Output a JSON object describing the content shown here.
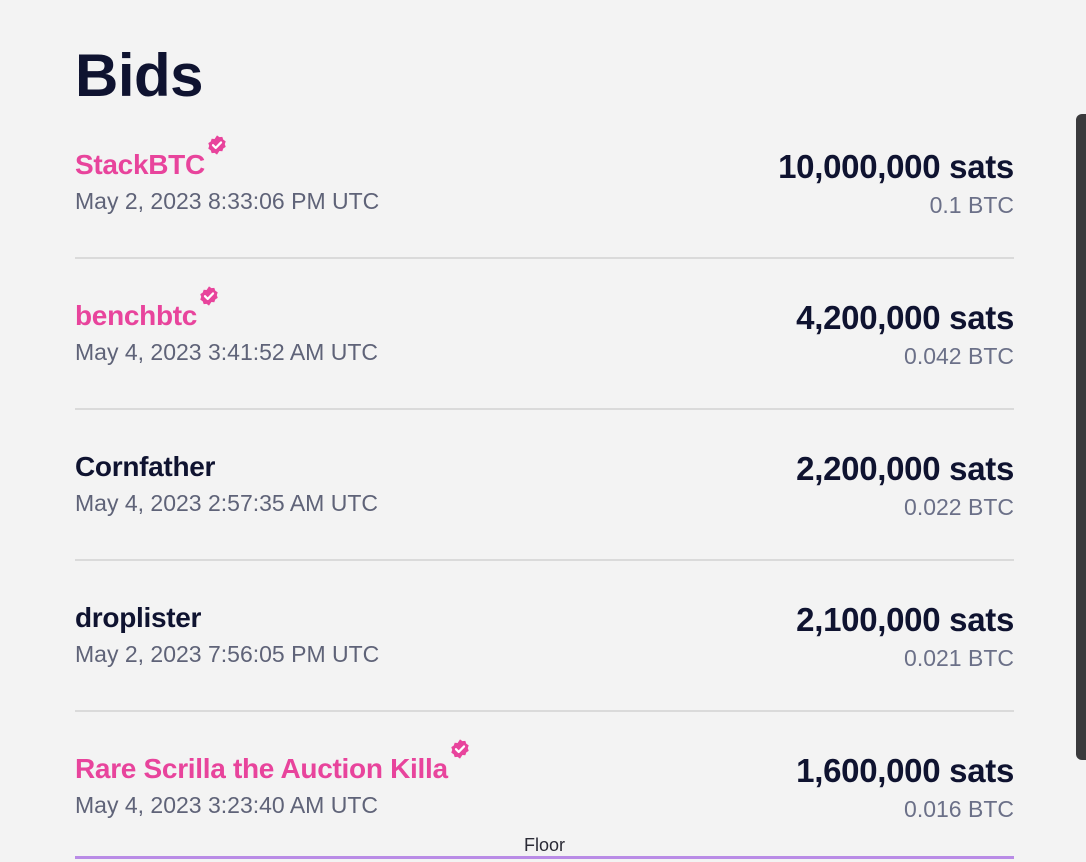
{
  "page": {
    "title": "Bids"
  },
  "colors": {
    "verified_accent": "#e8449c",
    "text_primary": "#0f1330",
    "text_secondary": "#5f6378",
    "floor_line": "#b98be6",
    "background": "#f3f3f3"
  },
  "bids": [
    {
      "bidder": "StackBTC",
      "verified": true,
      "time": "May 2, 2023 8:33:06 PM UTC",
      "sats": "10,000,000 sats",
      "btc": "0.1 BTC"
    },
    {
      "bidder": "benchbtc",
      "verified": true,
      "time": "May 4, 2023 3:41:52 AM UTC",
      "sats": "4,200,000 sats",
      "btc": "0.042 BTC"
    },
    {
      "bidder": "Cornfather",
      "verified": false,
      "time": "May 4, 2023 2:57:35 AM UTC",
      "sats": "2,200,000 sats",
      "btc": "0.022 BTC"
    },
    {
      "bidder": "droplister",
      "verified": false,
      "time": "May 2, 2023 7:56:05 PM UTC",
      "sats": "2,100,000 sats",
      "btc": "0.021 BTC"
    },
    {
      "bidder": "Rare Scrilla the Auction Killa",
      "verified": true,
      "time": "May 4, 2023 3:23:40 AM UTC",
      "sats": "1,600,000 sats",
      "btc": "0.016 BTC"
    }
  ],
  "floor": {
    "label": "Floor"
  },
  "icons": {
    "verified": "verified-badge-icon"
  }
}
